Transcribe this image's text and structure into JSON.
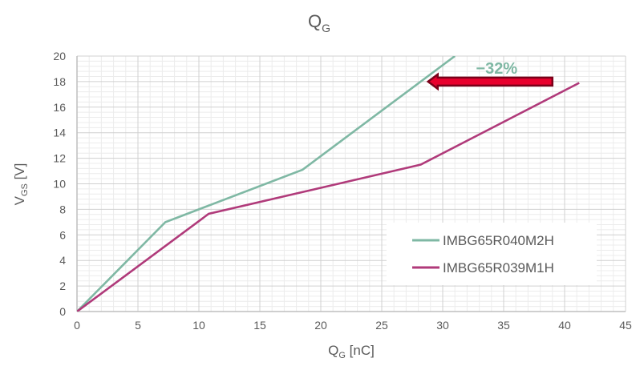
{
  "chart_data": {
    "type": "line",
    "title": {
      "main": "Q",
      "sub": "G"
    },
    "xlabel": {
      "main": "Q",
      "sub": "G",
      "rest": " [nC]"
    },
    "ylabel": {
      "main": "V",
      "sub": "GS",
      "rest": " [V]"
    },
    "xlim": [
      0,
      45
    ],
    "ylim": [
      0,
      20
    ],
    "xticks": [
      0,
      5,
      10,
      15,
      20,
      25,
      30,
      35,
      40,
      45
    ],
    "yticks": [
      0,
      2,
      4,
      6,
      8,
      10,
      12,
      14,
      16,
      18,
      20
    ],
    "grid": true,
    "legend_position": "bottom-right",
    "series": [
      {
        "name": "IMBG65R040M2H",
        "color": "#7fb8a4",
        "x": [
          0,
          7.25,
          18.5,
          31.0
        ],
        "y": [
          0,
          7.0,
          11.1,
          20.0
        ]
      },
      {
        "name": "IMBG65R039M1H",
        "color": "#b03a7a",
        "x": [
          0,
          10.8,
          28.2,
          41.2
        ],
        "y": [
          0,
          7.65,
          11.5,
          17.9
        ]
      }
    ],
    "annotation": {
      "text": "−32%",
      "color": "#7fb8a4",
      "arrow_from": [
        39.0,
        18.0
      ],
      "arrow_to": [
        28.8,
        18.0
      ],
      "arrow_color": "#e8002d"
    }
  }
}
